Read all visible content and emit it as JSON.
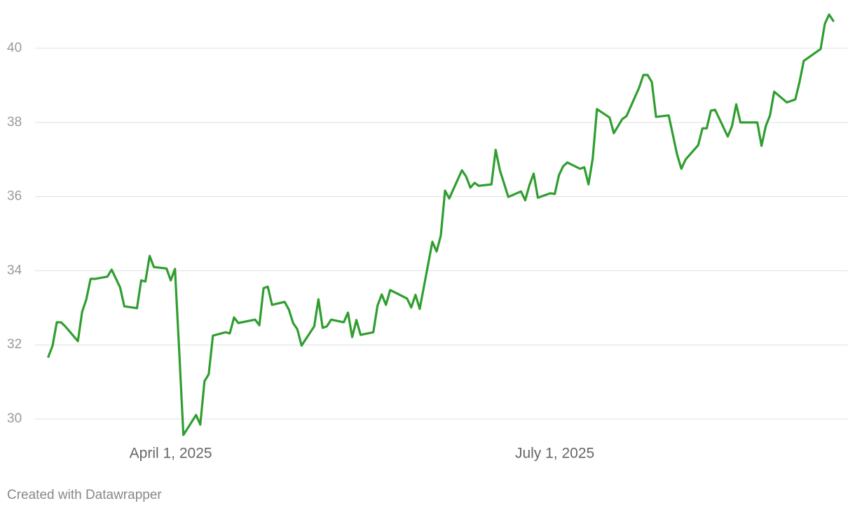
{
  "chart_data": {
    "type": "line",
    "x": [
      "2025-03-03",
      "2025-03-04",
      "2025-03-05",
      "2025-03-06",
      "2025-03-07",
      "2025-03-10",
      "2025-03-11",
      "2025-03-12",
      "2025-03-13",
      "2025-03-14",
      "2025-03-17",
      "2025-03-18",
      "2025-03-20",
      "2025-03-21",
      "2025-03-24",
      "2025-03-25",
      "2025-03-26",
      "2025-03-27",
      "2025-03-28",
      "2025-03-31",
      "2025-04-01",
      "2025-04-02",
      "2025-04-03",
      "2025-04-04",
      "2025-04-07",
      "2025-04-08",
      "2025-04-09",
      "2025-04-10",
      "2025-04-11",
      "2025-04-14",
      "2025-04-15",
      "2025-04-16",
      "2025-04-17",
      "2025-04-21",
      "2025-04-22",
      "2025-04-23",
      "2025-04-24",
      "2025-04-25",
      "2025-04-28",
      "2025-04-29",
      "2025-04-30",
      "2025-05-01",
      "2025-05-02",
      "2025-05-05",
      "2025-05-06",
      "2025-05-07",
      "2025-05-08",
      "2025-05-09",
      "2025-05-12",
      "2025-05-13",
      "2025-05-14",
      "2025-05-15",
      "2025-05-16",
      "2025-05-19",
      "2025-05-20",
      "2025-05-21",
      "2025-05-22",
      "2025-05-23",
      "2025-05-27",
      "2025-05-28",
      "2025-05-29",
      "2025-05-30",
      "2025-06-02",
      "2025-06-03",
      "2025-06-04",
      "2025-06-05",
      "2025-06-06",
      "2025-06-09",
      "2025-06-10",
      "2025-06-11",
      "2025-06-12",
      "2025-06-13",
      "2025-06-16",
      "2025-06-17",
      "2025-06-18",
      "2025-06-20",
      "2025-06-23",
      "2025-06-24",
      "2025-06-25",
      "2025-06-26",
      "2025-06-27",
      "2025-06-30",
      "2025-07-01",
      "2025-07-02",
      "2025-07-03",
      "2025-07-04",
      "2025-07-07",
      "2025-07-08",
      "2025-07-09",
      "2025-07-10",
      "2025-07-11",
      "2025-07-14",
      "2025-07-15",
      "2025-07-17",
      "2025-07-18",
      "2025-07-21",
      "2025-07-22",
      "2025-07-23",
      "2025-07-24",
      "2025-07-25",
      "2025-07-28",
      "2025-07-30",
      "2025-07-31",
      "2025-08-01",
      "2025-08-04",
      "2025-08-05",
      "2025-08-06",
      "2025-08-07",
      "2025-08-08",
      "2025-08-11",
      "2025-08-12",
      "2025-08-13",
      "2025-08-14",
      "2025-08-18",
      "2025-08-19",
      "2025-08-20",
      "2025-08-21",
      "2025-08-22",
      "2025-08-25",
      "2025-08-27",
      "2025-08-28",
      "2025-08-29",
      "2025-09-02",
      "2025-09-03",
      "2025-09-04",
      "2025-09-05"
    ],
    "series": [
      {
        "color": "#2f9e2f",
        "values": [
          31.68,
          31.98,
          32.61,
          32.61,
          32.5,
          32.1,
          32.89,
          33.23,
          33.78,
          33.78,
          33.84,
          34.03,
          33.55,
          33.04,
          32.99,
          33.74,
          33.71,
          34.4,
          34.1,
          34.06,
          33.74,
          34.05,
          31.85,
          29.57,
          30.11,
          29.85,
          31.02,
          31.21,
          32.25,
          32.34,
          32.31,
          32.74,
          32.59,
          32.68,
          32.53,
          33.53,
          33.57,
          33.08,
          33.16,
          32.95,
          32.59,
          32.42,
          31.98,
          32.5,
          33.23,
          32.46,
          32.5,
          32.68,
          32.61,
          32.87,
          32.21,
          32.67,
          32.27,
          32.34,
          33.06,
          33.36,
          33.08,
          33.48,
          33.25,
          33.01,
          33.35,
          32.97,
          34.78,
          34.52,
          34.95,
          36.16,
          35.95,
          36.71,
          36.54,
          36.24,
          36.37,
          36.29,
          36.33,
          37.26,
          36.71,
          35.99,
          36.14,
          35.9,
          36.31,
          36.62,
          35.97,
          36.09,
          36.07,
          36.58,
          36.82,
          36.92,
          36.75,
          36.79,
          36.33,
          37.03,
          38.36,
          38.13,
          37.71,
          38.09,
          38.17,
          38.94,
          39.28,
          39.28,
          39.09,
          38.15,
          38.19,
          37.13,
          36.75,
          37.0,
          37.39,
          37.84,
          37.84,
          38.32,
          38.34,
          37.62,
          37.9,
          38.49,
          38.0,
          38.0,
          37.37,
          37.9,
          38.19,
          38.83,
          38.54,
          38.62,
          39.09,
          39.66,
          39.98,
          40.66,
          40.91,
          40.74
        ]
      }
    ],
    "xlim": [
      "2025-03-03",
      "2025-09-05"
    ],
    "xticks": [
      {
        "value": "2025-04-01",
        "label": "April 1, 2025"
      },
      {
        "value": "2025-07-01",
        "label": "July 1, 2025"
      }
    ],
    "ylim": [
      29.5,
      41
    ],
    "yticks": [
      30,
      32,
      34,
      36,
      38,
      40
    ],
    "grid": true,
    "footer": "Created with Datawrapper"
  }
}
